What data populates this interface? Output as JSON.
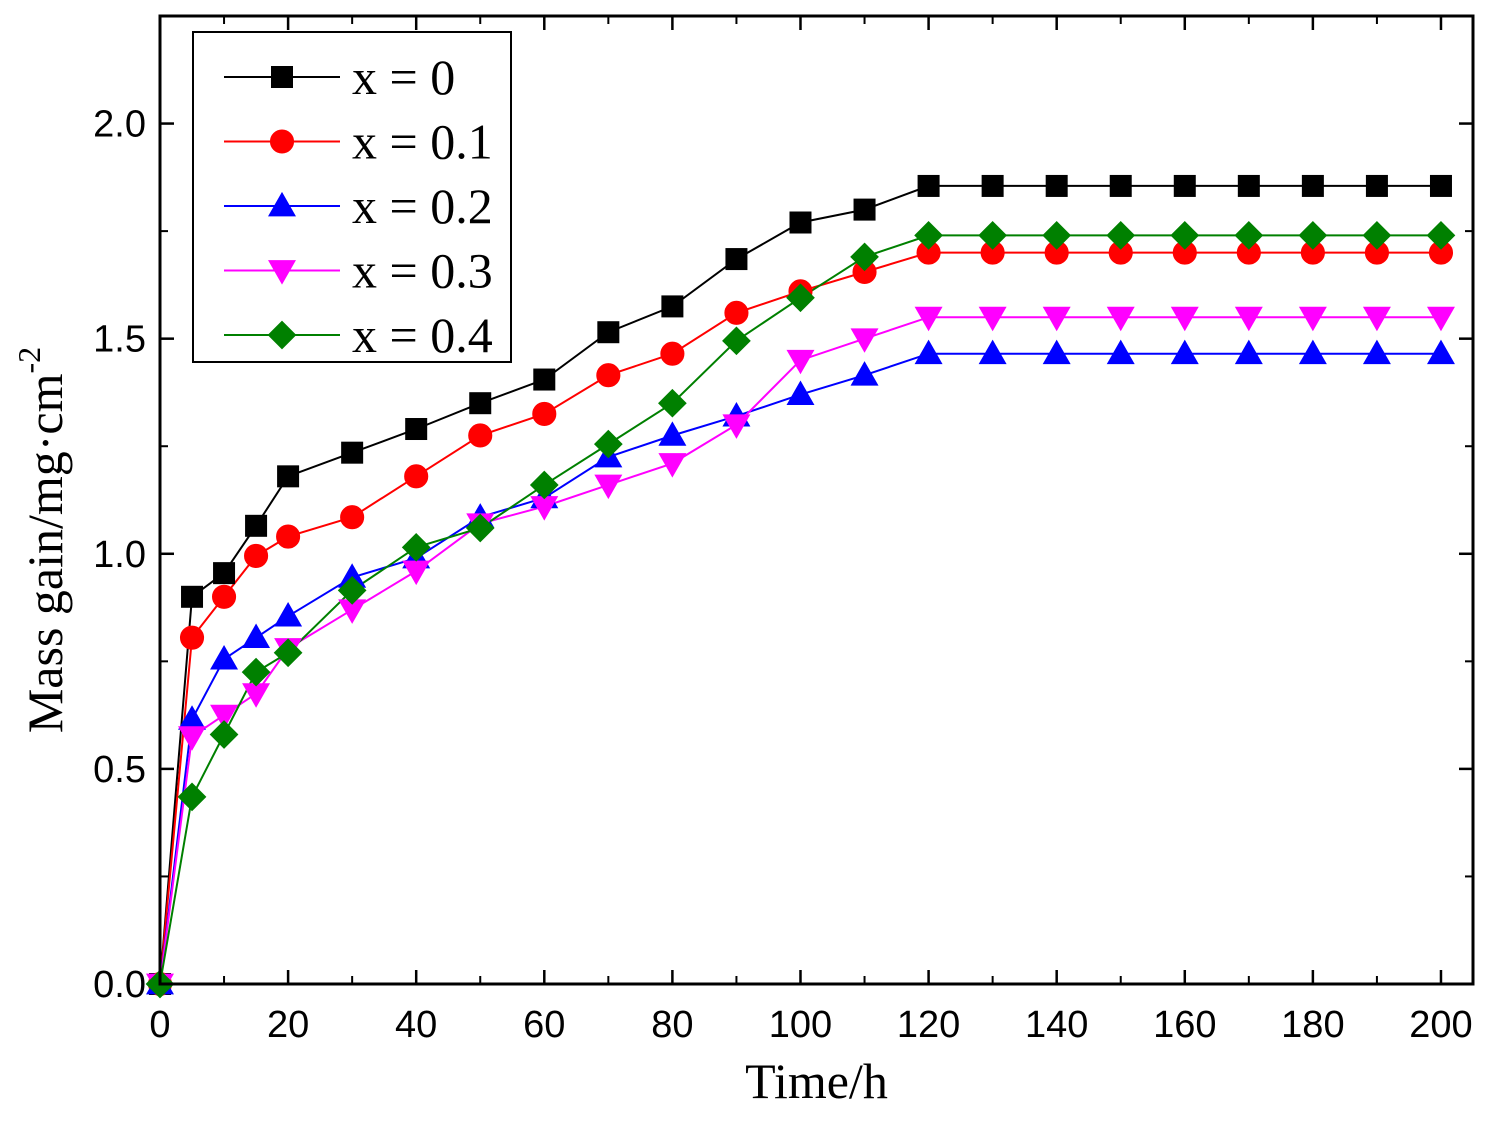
{
  "chart_data": {
    "type": "line",
    "title": "",
    "xlabel": "Time/h",
    "ylabel": "Mass gain/mg·cm",
    "ylabel_superscript": "-2",
    "xlim": [
      0,
      205
    ],
    "ylim": [
      0,
      2.25
    ],
    "xticks": [
      0,
      20,
      40,
      60,
      80,
      100,
      120,
      140,
      160,
      180,
      200
    ],
    "xtick_labels": [
      "0",
      "20",
      "40",
      "60",
      "80",
      "100",
      "120",
      "140",
      "160",
      "180",
      "200"
    ],
    "yticks": [
      0.0,
      0.5,
      1.0,
      1.5,
      2.0
    ],
    "ytick_labels": [
      "0.0",
      "0.5",
      "1.0",
      "1.5",
      "2.0"
    ],
    "grid": false,
    "legend_position": "top-left",
    "x": [
      0,
      5,
      10,
      15,
      20,
      30,
      40,
      50,
      60,
      70,
      80,
      90,
      100,
      110,
      120,
      130,
      140,
      150,
      160,
      170,
      180,
      190,
      200
    ],
    "series": [
      {
        "name": "x = 0",
        "color": "#000000",
        "marker": "square",
        "values": [
          0.0,
          0.9,
          0.955,
          1.065,
          1.18,
          1.235,
          1.29,
          1.35,
          1.405,
          1.515,
          1.575,
          1.685,
          1.77,
          1.8,
          1.855,
          1.855,
          1.855,
          1.855,
          1.855,
          1.855,
          1.855,
          1.855,
          1.855
        ]
      },
      {
        "name": "x = 0.1",
        "color": "#ff0000",
        "marker": "circle",
        "values": [
          0.0,
          0.805,
          0.9,
          0.995,
          1.04,
          1.085,
          1.18,
          1.275,
          1.325,
          1.415,
          1.465,
          1.56,
          1.61,
          1.655,
          1.7,
          1.7,
          1.7,
          1.7,
          1.7,
          1.7,
          1.7,
          1.7,
          1.7
        ]
      },
      {
        "name": "x = 0.2",
        "color": "#0000ff",
        "marker": "triangle-up",
        "values": [
          0.0,
          0.615,
          0.755,
          0.805,
          0.855,
          0.945,
          0.99,
          1.085,
          1.13,
          1.225,
          1.275,
          1.32,
          1.37,
          1.415,
          1.465,
          1.465,
          1.465,
          1.465,
          1.465,
          1.465,
          1.465,
          1.465,
          1.465
        ]
      },
      {
        "name": "x = 0.3",
        "color": "#ff00ff",
        "marker": "triangle-down",
        "values": [
          0.0,
          0.575,
          0.625,
          0.675,
          0.78,
          0.87,
          0.96,
          1.07,
          1.11,
          1.16,
          1.21,
          1.3,
          1.45,
          1.5,
          1.55,
          1.55,
          1.55,
          1.55,
          1.55,
          1.55,
          1.55,
          1.55,
          1.55
        ]
      },
      {
        "name": "x = 0.4",
        "color": "#008000",
        "marker": "diamond",
        "values": [
          0.0,
          0.435,
          0.58,
          0.725,
          0.77,
          0.915,
          1.015,
          1.06,
          1.16,
          1.255,
          1.35,
          1.495,
          1.595,
          1.69,
          1.74,
          1.74,
          1.74,
          1.74,
          1.74,
          1.74,
          1.74,
          1.74,
          1.74
        ]
      }
    ]
  }
}
